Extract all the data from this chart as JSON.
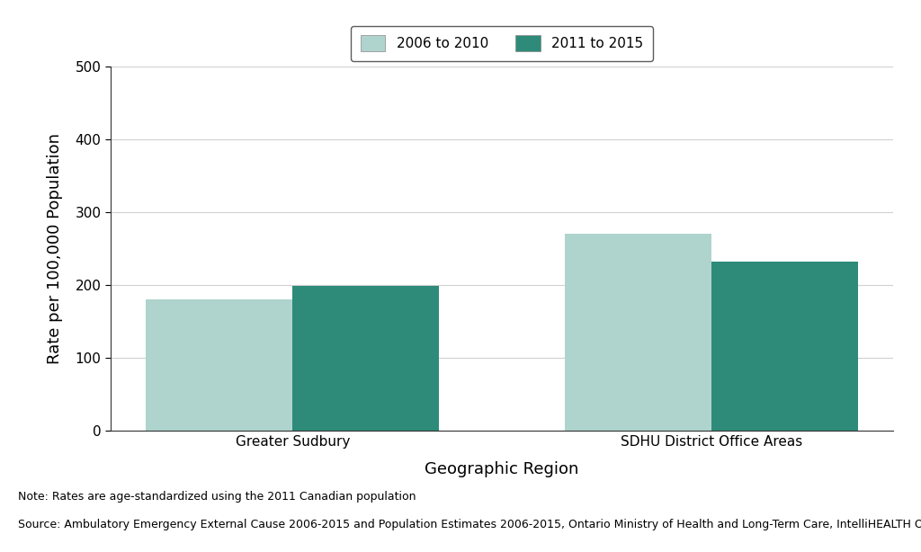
{
  "categories": [
    "Greater Sudbury",
    "SDHU District Office Areas"
  ],
  "series": [
    {
      "label": "2006 to 2010",
      "values": [
        180,
        270
      ],
      "color": "#aed4cd"
    },
    {
      "label": "2011 to 2015",
      "values": [
        198,
        232
      ],
      "color": "#2e8b7a"
    }
  ],
  "ylabel": "Rate per 100,000 Population",
  "xlabel": "Geographic Region",
  "ylim": [
    0,
    500
  ],
  "yticks": [
    0,
    100,
    200,
    300,
    400,
    500
  ],
  "note_line1": "Note: Rates are age-standardized using the 2011 Canadian population",
  "note_line2": "Source: Ambulatory Emergency External Cause 2006-2015 and Population Estimates 2006-2015, Ontario Ministry of Health and Long-Term Care, IntelliHEALTH Ontario",
  "background_color": "#ffffff",
  "grid_color": "#d0d0d0",
  "bar_width": 0.35,
  "legend_fontsize": 11,
  "axis_label_fontsize": 13,
  "tick_fontsize": 11,
  "note_fontsize": 9
}
